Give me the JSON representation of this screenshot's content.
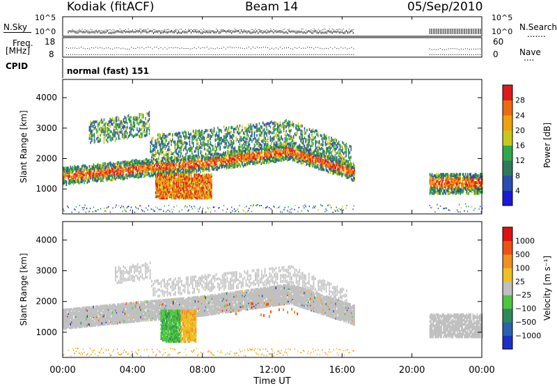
{
  "header": {
    "station": "Kodiak (fitACF)",
    "beam": "Beam 14",
    "date": "05/Sep/2010"
  },
  "housekeeping": {
    "nsky_label": "N.Sky",
    "nsearch_label": "N.Search",
    "nsearch_dots": ".......",
    "freq_label_line1": "Freq.",
    "freq_label_line2": "[MHz]",
    "nave_label": "Nave",
    "nave_dots": "....",
    "cpid_label": "CPID",
    "cpid_value": "normal (fast) 151",
    "nsky_ticks": [
      "10^5",
      "10^0"
    ],
    "nsearch_ticks": [
      "10^5",
      "10^0"
    ],
    "freq_ticks": [
      "18",
      "8"
    ],
    "nave_ticks": [
      "60",
      "0"
    ]
  },
  "chart_data": [
    {
      "type": "heatmap",
      "title": "",
      "ylabel": "Slant Range [km]",
      "xlabel": "",
      "ylim": [
        180,
        4600
      ],
      "xlim": [
        "00:00",
        "24:00"
      ],
      "yticks": [
        "1000",
        "2000",
        "3000",
        "4000"
      ],
      "colorbar": {
        "label": "Power [dB]",
        "ticks": [
          "4",
          "8",
          "12",
          "16",
          "20",
          "24",
          "28"
        ],
        "colors": [
          "#1a1ad8",
          "#2a4fb0",
          "#2f7a5a",
          "#2ea84a",
          "#c8c81a",
          "#f0a010",
          "#ee6a10",
          "#e01a1a"
        ]
      },
      "features": [
        {
          "name": "main band",
          "t_start": 0,
          "t_end": 16.7,
          "range_km": 1350
        },
        {
          "name": "upper structure",
          "t_start": 1.5,
          "t_end": 16.5,
          "range_km": 2700
        },
        {
          "name": "enhancement",
          "t_start": 5.3,
          "t_end": 8.5,
          "range_km": 1000
        },
        {
          "name": "late band",
          "t_start": 21,
          "t_end": 24,
          "range_km": 1200
        }
      ]
    },
    {
      "type": "heatmap",
      "title": "",
      "ylabel": "Slant Range [km]",
      "xlabel": "Time UT",
      "ylim": [
        180,
        4600
      ],
      "xlim": [
        "00:00",
        "24:00"
      ],
      "yticks": [
        "1000",
        "2000",
        "3000",
        "4000"
      ],
      "xticks": [
        "00:00",
        "04:00",
        "08:00",
        "12:00",
        "16:00",
        "20:00",
        "00:00"
      ],
      "colorbar": {
        "label": "Velocity [m s⁻¹]",
        "ticks": [
          "1000",
          "500",
          "100",
          "25",
          "−25",
          "−100",
          "−500",
          "−1000"
        ],
        "colors": [
          "#1a30c8",
          "#2a62b0",
          "#2f8a5a",
          "#4cc83a",
          "#c0c0c0",
          "#f0c020",
          "#f09020",
          "#ee5010",
          "#e01010"
        ]
      }
    }
  ]
}
